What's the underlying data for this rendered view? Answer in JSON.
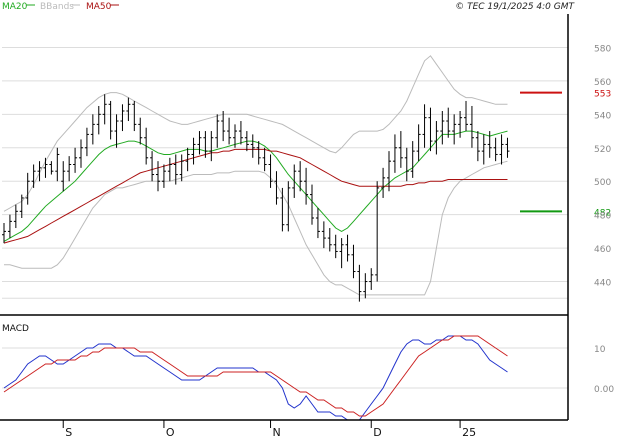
{
  "header": {
    "legend": [
      {
        "name": "MA20",
        "color": "#22aa22"
      },
      {
        "name": "BBands",
        "color": "#bbbbbb"
      },
      {
        "name": "MA50",
        "color": "#aa1111"
      }
    ],
    "copyright": "© TEC 19/1/2025 4:0 GMT"
  },
  "chart_data": [
    {
      "type": "candlestick",
      "title": "",
      "ylim": [
        420,
        600
      ],
      "yticks": [
        440,
        460,
        480,
        500,
        520,
        540,
        560,
        580
      ],
      "grid": true,
      "xticks": [
        {
          "label": "S",
          "index": 10
        },
        {
          "label": "O",
          "index": 27
        },
        {
          "label": "N",
          "index": 45
        },
        {
          "label": "D",
          "index": 62
        },
        {
          "label": "25",
          "index": 77
        }
      ],
      "n": 86,
      "bars": [
        [
          468,
          475,
          463,
          470
        ],
        [
          470,
          480,
          466,
          476
        ],
        [
          476,
          486,
          472,
          482
        ],
        [
          482,
          492,
          478,
          490
        ],
        [
          490,
          505,
          486,
          500
        ],
        [
          500,
          510,
          496,
          506
        ],
        [
          506,
          512,
          500,
          508
        ],
        [
          508,
          514,
          502,
          510
        ],
        [
          510,
          512,
          504,
          506
        ],
        [
          506,
          520,
          500,
          516
        ],
        [
          500,
          512,
          494,
          506
        ],
        [
          506,
          515,
          500,
          510
        ],
        [
          510,
          520,
          505,
          514
        ],
        [
          514,
          525,
          508,
          520
        ],
        [
          520,
          532,
          515,
          528
        ],
        [
          528,
          540,
          522,
          534
        ],
        [
          534,
          545,
          528,
          540
        ],
        [
          540,
          552,
          534,
          546
        ],
        [
          546,
          548,
          525,
          530
        ],
        [
          530,
          540,
          520,
          536
        ],
        [
          536,
          546,
          530,
          542
        ],
        [
          542,
          550,
          536,
          546
        ],
        [
          546,
          548,
          530,
          534
        ],
        [
          534,
          538,
          522,
          526
        ],
        [
          526,
          532,
          510,
          514
        ],
        [
          514,
          518,
          500,
          504
        ],
        [
          504,
          512,
          494,
          500
        ],
        [
          500,
          510,
          496,
          506
        ],
        [
          506,
          514,
          500,
          510
        ],
        [
          510,
          516,
          498,
          504
        ],
        [
          504,
          516,
          500,
          512
        ],
        [
          512,
          520,
          506,
          516
        ],
        [
          516,
          526,
          510,
          522
        ],
        [
          522,
          530,
          516,
          526
        ],
        [
          526,
          530,
          514,
          518
        ],
        [
          518,
          530,
          512,
          526
        ],
        [
          526,
          540,
          520,
          536
        ],
        [
          536,
          542,
          524,
          530
        ],
        [
          530,
          538,
          522,
          526
        ],
        [
          526,
          534,
          520,
          530
        ],
        [
          530,
          536,
          522,
          526
        ],
        [
          526,
          530,
          518,
          522
        ],
        [
          522,
          528,
          514,
          520
        ],
        [
          520,
          524,
          510,
          514
        ],
        [
          514,
          520,
          506,
          510
        ],
        [
          510,
          516,
          496,
          500
        ],
        [
          500,
          506,
          486,
          490
        ],
        [
          490,
          496,
          470,
          474
        ],
        [
          474,
          500,
          470,
          496
        ],
        [
          496,
          510,
          490,
          506
        ],
        [
          506,
          512,
          494,
          500
        ],
        [
          500,
          508,
          486,
          492
        ],
        [
          492,
          498,
          474,
          478
        ],
        [
          478,
          484,
          466,
          470
        ],
        [
          470,
          476,
          460,
          466
        ],
        [
          466,
          472,
          458,
          462
        ],
        [
          462,
          468,
          454,
          458
        ],
        [
          458,
          466,
          448,
          462
        ],
        [
          462,
          468,
          452,
          456
        ],
        [
          456,
          462,
          442,
          446
        ],
        [
          446,
          450,
          428,
          434
        ],
        [
          434,
          445,
          430,
          440
        ],
        [
          440,
          448,
          435,
          444
        ],
        [
          444,
          500,
          440,
          496
        ],
        [
          496,
          508,
          490,
          502
        ],
        [
          502,
          518,
          494,
          512
        ],
        [
          512,
          528,
          505,
          520
        ],
        [
          520,
          530,
          508,
          514
        ],
        [
          514,
          520,
          500,
          506
        ],
        [
          506,
          524,
          502,
          518
        ],
        [
          518,
          534,
          512,
          528
        ],
        [
          528,
          546,
          520,
          538
        ],
        [
          538,
          544,
          518,
          524
        ],
        [
          524,
          536,
          516,
          530
        ],
        [
          530,
          542,
          522,
          536
        ],
        [
          536,
          544,
          526,
          530
        ],
        [
          530,
          540,
          522,
          534
        ],
        [
          534,
          542,
          526,
          538
        ],
        [
          538,
          548,
          530,
          534
        ],
        [
          534,
          545,
          520,
          526
        ],
        [
          526,
          530,
          512,
          518
        ],
        [
          518,
          528,
          510,
          522
        ],
        [
          522,
          530,
          514,
          520
        ],
        [
          520,
          526,
          512,
          516
        ],
        [
          516,
          528,
          510,
          522
        ],
        [
          522,
          526,
          514,
          518
        ]
      ],
      "series": [
        {
          "name": "MA20",
          "color": "#22aa22",
          "values": [
            464,
            466,
            468,
            470,
            473,
            477,
            481,
            485,
            488,
            491,
            494,
            497,
            500,
            504,
            508,
            512,
            516,
            519,
            521,
            522,
            523,
            524,
            524,
            523,
            521,
            519,
            517,
            516,
            516,
            517,
            518,
            519,
            519,
            519,
            518,
            518,
            519,
            520,
            521,
            522,
            523,
            524,
            524,
            523,
            521,
            518,
            514,
            509,
            504,
            500,
            496,
            492,
            488,
            484,
            480,
            476,
            472,
            470,
            472,
            476,
            480,
            484,
            488,
            492,
            496,
            499,
            502,
            504,
            506,
            508,
            512,
            516,
            520,
            524,
            528,
            528,
            528,
            529,
            530,
            530,
            529,
            528,
            527,
            528,
            529,
            530
          ]
        },
        {
          "name": "MA50",
          "color": "#aa1111",
          "values": [
            463,
            464,
            465,
            466,
            467,
            469,
            471,
            473,
            475,
            477,
            479,
            481,
            483,
            485,
            487,
            489,
            491,
            493,
            495,
            497,
            499,
            501,
            503,
            505,
            506,
            507,
            508,
            509,
            510,
            511,
            512,
            513,
            514,
            515,
            516,
            517,
            517,
            518,
            518,
            519,
            519,
            519,
            519,
            519,
            519,
            518,
            518,
            517,
            516,
            515,
            514,
            512,
            510,
            508,
            506,
            504,
            502,
            500,
            499,
            498,
            497,
            497,
            497,
            497,
            497,
            497,
            497,
            497,
            498,
            498,
            499,
            499,
            500,
            500,
            500,
            501,
            501,
            501,
            501,
            501,
            501,
            501,
            501,
            501,
            501,
            501
          ]
        },
        {
          "name": "BBands Upper",
          "color": "#bbbbbb",
          "values": [
            482,
            484,
            486,
            488,
            492,
            498,
            505,
            512,
            518,
            524,
            528,
            532,
            536,
            540,
            544,
            547,
            550,
            552,
            553,
            553,
            552,
            550,
            548,
            546,
            544,
            542,
            540,
            538,
            536,
            535,
            534,
            534,
            535,
            536,
            537,
            538,
            539,
            540,
            540,
            540,
            540,
            540,
            539,
            538,
            537,
            536,
            535,
            534,
            532,
            530,
            528,
            526,
            524,
            522,
            520,
            518,
            517,
            520,
            524,
            528,
            530,
            530,
            530,
            530,
            531,
            534,
            538,
            542,
            548,
            556,
            564,
            572,
            575,
            570,
            565,
            560,
            555,
            552,
            550,
            550,
            549,
            548,
            547,
            546,
            546,
            546
          ]
        },
        {
          "name": "BBands Lower",
          "color": "#bbbbbb",
          "values": [
            450,
            450,
            449,
            448,
            448,
            448,
            448,
            448,
            448,
            450,
            454,
            460,
            466,
            472,
            478,
            484,
            488,
            492,
            494,
            496,
            496,
            497,
            498,
            499,
            500,
            500,
            500,
            500,
            500,
            501,
            502,
            503,
            504,
            504,
            504,
            504,
            505,
            505,
            505,
            506,
            506,
            506,
            506,
            506,
            505,
            502,
            498,
            492,
            486,
            478,
            470,
            462,
            456,
            450,
            444,
            440,
            438,
            438,
            436,
            434,
            432,
            432,
            432,
            432,
            432,
            432,
            432,
            432,
            432,
            432,
            432,
            432,
            440,
            460,
            480,
            490,
            496,
            500,
            502,
            504,
            506,
            508,
            509,
            510,
            511,
            512
          ]
        }
      ],
      "annotations": [
        {
          "label": "553",
          "value": 553,
          "color": "#cc1111"
        },
        {
          "label": "482",
          "value": 482,
          "color": "#119911"
        }
      ]
    },
    {
      "type": "line",
      "title": "MACD",
      "ylim": [
        -8,
        18
      ],
      "yticks": [
        0,
        10
      ],
      "ytick_labels": [
        "0.00",
        "10"
      ],
      "series": [
        {
          "name": "MACD",
          "color": "#2233cc",
          "values": [
            0,
            1,
            2,
            4,
            6,
            7,
            8,
            8,
            7,
            6,
            6,
            7,
            8,
            9,
            10,
            10,
            11,
            11,
            11,
            10,
            10,
            9,
            8,
            8,
            8,
            7,
            6,
            5,
            4,
            3,
            2,
            2,
            2,
            2,
            3,
            4,
            5,
            5,
            5,
            5,
            5,
            5,
            5,
            4,
            4,
            3,
            2,
            0,
            -4,
            -5,
            -4,
            -2,
            -4,
            -6,
            -6,
            -6,
            -7,
            -7,
            -8,
            -8,
            -8,
            -6,
            -4,
            -2,
            0,
            3,
            6,
            9,
            11,
            12,
            12,
            11,
            11,
            12,
            12,
            13,
            13,
            13,
            12,
            12,
            11,
            9,
            7,
            6,
            5,
            4
          ]
        },
        {
          "name": "Signal",
          "color": "#cc2222",
          "values": [
            -1,
            0,
            1,
            2,
            3,
            4,
            5,
            6,
            6,
            7,
            7,
            7,
            7,
            8,
            8,
            9,
            9,
            10,
            10,
            10,
            10,
            10,
            10,
            9,
            9,
            9,
            8,
            7,
            6,
            5,
            4,
            3,
            3,
            3,
            3,
            3,
            3,
            4,
            4,
            4,
            4,
            4,
            4,
            4,
            4,
            4,
            3,
            2,
            1,
            0,
            -1,
            -1,
            -2,
            -3,
            -3,
            -4,
            -5,
            -5,
            -6,
            -6,
            -7,
            -7,
            -6,
            -5,
            -4,
            -2,
            0,
            2,
            4,
            6,
            8,
            9,
            10,
            11,
            12,
            12,
            13,
            13,
            13,
            13,
            13,
            12,
            11,
            10,
            9,
            8
          ]
        }
      ]
    }
  ]
}
